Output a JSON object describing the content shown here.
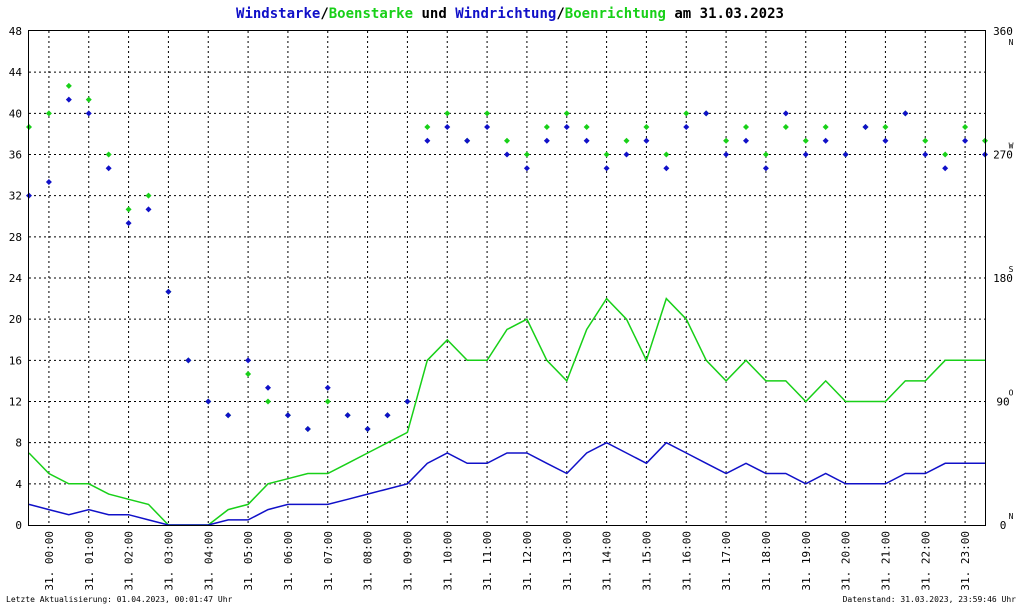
{
  "chart_data": {
    "type": "line",
    "title_parts": [
      {
        "text": "Windstarke",
        "color": "#1010c8"
      },
      {
        "text": "/",
        "color": "#000000"
      },
      {
        "text": "Boenstarke",
        "color": "#18d018"
      },
      {
        "text": " und ",
        "color": "#000000"
      },
      {
        "text": "Windrichtung",
        "color": "#1010c8"
      },
      {
        "text": "/",
        "color": "#000000"
      },
      {
        "text": "Boenrichtung",
        "color": "#18d018"
      },
      {
        "text": " am 31.03.2023",
        "color": "#000000"
      }
    ],
    "ylim": [
      0,
      48
    ],
    "y_ticks": [
      "0",
      "4",
      "8",
      "12",
      "16",
      "20",
      "24",
      "28",
      "32",
      "36",
      "40",
      "44",
      "48"
    ],
    "y2lim": [
      0,
      360
    ],
    "y2_ticks": [
      {
        "value": 0,
        "label": "0",
        "dir": "N"
      },
      {
        "value": 90,
        "label": "90",
        "dir": "O"
      },
      {
        "value": 180,
        "label": "180",
        "dir": "S"
      },
      {
        "value": 270,
        "label": "270",
        "dir": "W"
      },
      {
        "value": 360,
        "label": "360",
        "dir": "N"
      }
    ],
    "x_ticks": [
      "31. 00:00",
      "31. 01:00",
      "31. 02:00",
      "31. 03:00",
      "31. 04:00",
      "31. 05:00",
      "31. 06:00",
      "31. 07:00",
      "31. 08:00",
      "31. 09:00",
      "31. 10:00",
      "31. 11:00",
      "31. 12:00",
      "31. 13:00",
      "31. 14:00",
      "31. 15:00",
      "31. 16:00",
      "31. 17:00",
      "31. 18:00",
      "31. 19:00",
      "31. 20:00",
      "31. 21:00",
      "31. 22:00",
      "31. 23:00"
    ],
    "grid": true,
    "colors": {
      "wind": "#1010c8",
      "gust": "#18d018",
      "grid": "#000000"
    },
    "series": [
      {
        "key": "wind_speed",
        "hours": [
          0,
          0.5,
          1,
          1.5,
          2,
          2.5,
          3,
          3.5,
          4,
          4.5,
          5,
          5.5,
          6,
          6.5,
          7,
          7.5,
          8,
          8.5,
          9,
          9.5,
          10,
          10.5,
          11,
          11.5,
          12,
          12.5,
          13,
          13.5,
          14,
          14.5,
          15,
          15.5,
          16,
          16.5,
          17,
          17.5,
          18,
          18.5,
          19,
          19.5,
          20,
          20.5,
          21,
          21.5,
          22,
          22.5,
          23,
          23.5,
          24
        ],
        "values": [
          2,
          1.5,
          1,
          1.5,
          1,
          1,
          0.5,
          0,
          0,
          0,
          0.5,
          0.5,
          1.5,
          2,
          2,
          2,
          2.5,
          3,
          3.5,
          4,
          6,
          7,
          6,
          6,
          7,
          7,
          6,
          5,
          7,
          8,
          7,
          6,
          8,
          7,
          6,
          5,
          6,
          5,
          5,
          4,
          5,
          4,
          4,
          4,
          5,
          5,
          6,
          6,
          6
        ]
      },
      {
        "key": "gust_speed",
        "hours": [
          0,
          0.5,
          1,
          1.5,
          2,
          2.5,
          3,
          3.5,
          4,
          4.5,
          5,
          5.5,
          6,
          6.5,
          7,
          7.5,
          8,
          8.5,
          9,
          9.5,
          10,
          10.5,
          11,
          11.5,
          12,
          12.5,
          13,
          13.5,
          14,
          14.5,
          15,
          15.5,
          16,
          16.5,
          17,
          17.5,
          18,
          18.5,
          19,
          19.5,
          20,
          20.5,
          21,
          21.5,
          22,
          22.5,
          23,
          23.5,
          24
        ],
        "values": [
          7,
          5,
          4,
          4,
          3,
          2.5,
          2,
          0,
          0,
          0,
          1.5,
          2,
          4,
          4.5,
          5,
          5,
          6,
          7,
          8,
          9,
          16,
          18,
          16,
          16,
          19,
          20,
          16,
          14,
          19,
          22,
          20,
          16,
          22,
          20,
          16,
          14,
          16,
          14,
          14,
          12,
          14,
          12,
          12,
          12,
          14,
          14,
          16,
          16,
          16
        ]
      },
      {
        "key": "wind_direction",
        "hours": [
          0,
          0.5,
          1,
          1.5,
          2,
          2.5,
          3,
          3.5,
          4,
          4.5,
          5,
          5.5,
          6,
          6.5,
          7,
          7.5,
          8,
          8.5,
          9,
          9.5,
          10,
          10.5,
          11,
          11.5,
          12,
          12.5,
          13,
          13.5,
          14,
          14.5,
          15,
          15.5,
          16,
          16.5,
          17,
          17.5,
          18,
          18.5,
          19,
          19.5,
          20,
          20.5,
          21,
          21.5,
          22,
          22.5,
          23,
          23.5,
          24
        ],
        "values": [
          240,
          250,
          310,
          300,
          260,
          220,
          230,
          170,
          120,
          90,
          80,
          120,
          100,
          80,
          70,
          100,
          80,
          70,
          80,
          90,
          280,
          290,
          280,
          290,
          270,
          260,
          280,
          290,
          280,
          260,
          270,
          280,
          260,
          290,
          300,
          270,
          280,
          260,
          300,
          270,
          280,
          270,
          290,
          280,
          300,
          270,
          260,
          280,
          270
        ]
      },
      {
        "key": "gust_direction",
        "hours": [
          0,
          0.5,
          1,
          1.5,
          2,
          2.5,
          3,
          3.5,
          4,
          4.5,
          5,
          5.5,
          6,
          6.5,
          7,
          7.5,
          8,
          8.5,
          9,
          9.5,
          10,
          10.5,
          11,
          11.5,
          12,
          12.5,
          13,
          13.5,
          14,
          14.5,
          15,
          15.5,
          16,
          16.5,
          17,
          17.5,
          18,
          18.5,
          19,
          19.5,
          20,
          20.5,
          21,
          21.5,
          22,
          22.5,
          23,
          23.5,
          24
        ],
        "values": [
          290,
          300,
          320,
          310,
          270,
          230,
          240,
          170,
          120,
          90,
          80,
          110,
          90,
          80,
          70,
          90,
          80,
          70,
          80,
          90,
          290,
          300,
          280,
          300,
          280,
          270,
          290,
          300,
          290,
          270,
          280,
          290,
          270,
          300,
          300,
          280,
          290,
          270,
          290,
          280,
          290,
          270,
          290,
          290,
          300,
          280,
          270,
          290,
          280
        ]
      }
    ]
  },
  "footer": {
    "left": "Letzte Aktualisierung: 01.04.2023, 00:01:47 Uhr",
    "right": "Datenstand: 31.03.2023, 23:59:46 Uhr"
  }
}
